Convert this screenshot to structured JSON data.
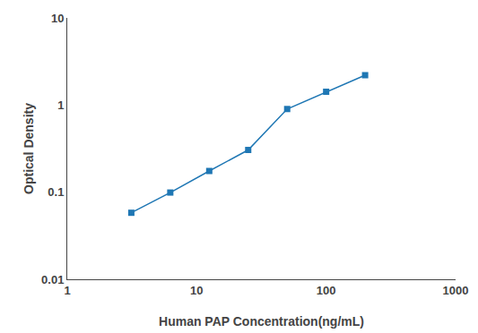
{
  "chart_data": {
    "type": "line",
    "x": [
      3.125,
      6.25,
      12.5,
      25,
      50,
      100,
      200
    ],
    "values": [
      0.058,
      0.099,
      0.175,
      0.305,
      0.9,
      1.42,
      2.2
    ],
    "xlabel": "Human PAP Concentration(ng/mL)",
    "ylabel": "Optical Density",
    "xlim": [
      1,
      1000
    ],
    "ylim": [
      0.01,
      10
    ],
    "xticks": [
      1,
      10,
      100,
      1000
    ],
    "yticks": [
      0.01,
      0.1,
      1,
      10
    ],
    "log": true,
    "grid": false,
    "marker": "square"
  }
}
